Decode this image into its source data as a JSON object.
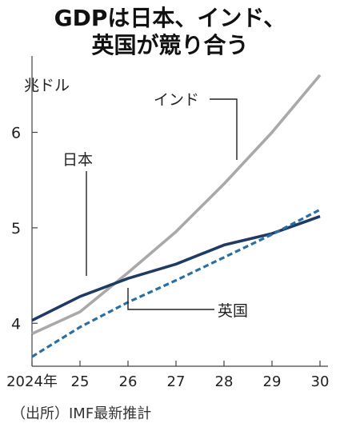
{
  "title_line1": "GDPは日本、インド、",
  "title_line2": "英国が競り合う",
  "source": "（出所）IMF最新推計",
  "chart_data": {
    "type": "line",
    "title": "GDPは日本、インド、英国が競り合う",
    "ylabel": "兆ドル",
    "x": [
      2024,
      2025,
      2026,
      2027,
      2028,
      2029,
      2030
    ],
    "x_tick_labels": [
      "2024年",
      "25",
      "26",
      "27",
      "28",
      "29",
      "30"
    ],
    "y_ticks": [
      4,
      5,
      6
    ],
    "ylim": [
      3.55,
      6.8
    ],
    "grid": false,
    "series": [
      {
        "name": "インド",
        "values": [
          3.89,
          4.12,
          4.53,
          4.96,
          5.46,
          6.0,
          6.6
        ],
        "color": "#a9a9a9",
        "style": "solid"
      },
      {
        "name": "日本",
        "values": [
          4.03,
          4.28,
          4.47,
          4.62,
          4.82,
          4.94,
          5.12
        ],
        "color": "#1f3a63",
        "style": "solid"
      },
      {
        "name": "英国",
        "values": [
          3.65,
          3.96,
          4.22,
          4.45,
          4.69,
          4.93,
          5.19
        ],
        "color": "#2a6fa3",
        "style": "dashed"
      }
    ]
  }
}
